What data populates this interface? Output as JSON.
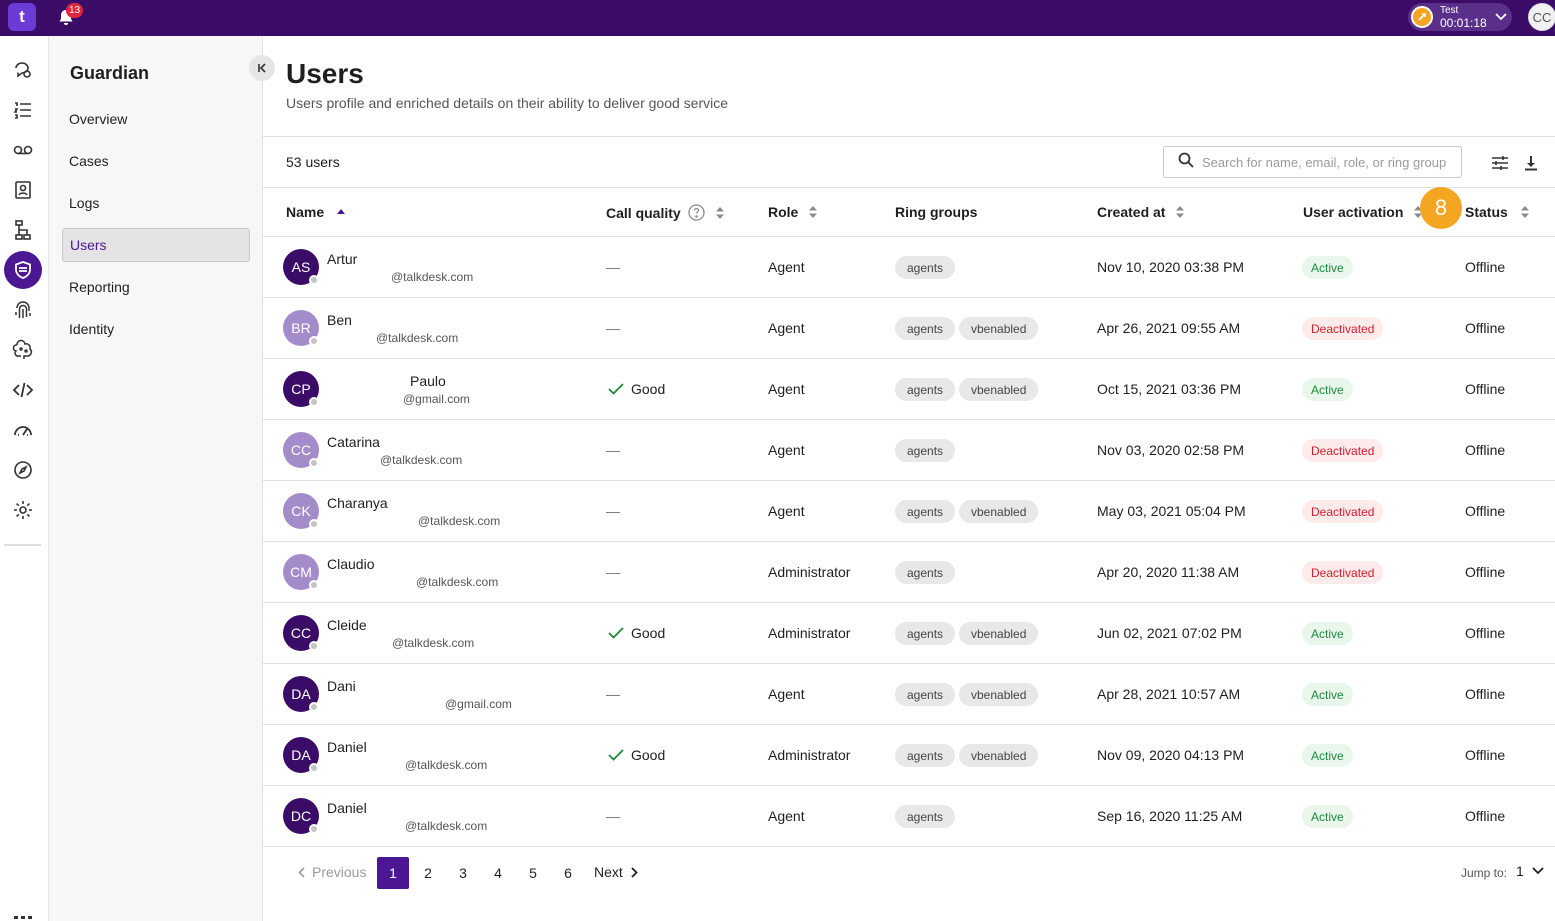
{
  "topbar": {
    "logo_text": "t",
    "notification_count": "13",
    "timer_label": "Test",
    "timer_time": "00:01:18",
    "user_initials": "CC"
  },
  "rail": {
    "icons": [
      "conversations-icon",
      "list-icon",
      "voicemail-icon",
      "contacts-icon",
      "flows-icon",
      "guardian-shield-icon",
      "fingerprint-icon",
      "brain-icon",
      "code-icon",
      "dashboard-icon",
      "compass-icon",
      "settings-icon"
    ],
    "active_icon": "guardian-shield-icon"
  },
  "sidebar": {
    "title": "Guardian",
    "items": [
      {
        "label": "Overview",
        "active": false
      },
      {
        "label": "Cases",
        "active": false
      },
      {
        "label": "Logs",
        "active": false
      },
      {
        "label": "Users",
        "active": true
      },
      {
        "label": "Reporting",
        "active": false
      },
      {
        "label": "Identity",
        "active": false
      }
    ]
  },
  "page": {
    "title": "Users",
    "subtitle": "Users profile and enriched details on their ability to deliver good service",
    "user_count": "53 users",
    "search_placeholder": "Search for name, email, role, or ring group"
  },
  "columns": {
    "name": "Name",
    "call_quality": "Call quality",
    "role": "Role",
    "ring_groups": "Ring groups",
    "created_at": "Created at",
    "user_activation": "User activation",
    "status": "Status"
  },
  "step_marker": "8",
  "rows": [
    {
      "initials": "AS",
      "avatar_color": "#3b0c67",
      "name": "Artur",
      "email": "@talkdesk.com",
      "call_quality": "—",
      "role": "Agent",
      "ring_groups": [
        "agents"
      ],
      "created_at": "Nov 10, 2020 03:38 PM",
      "activation": "Active",
      "status": "Offline"
    },
    {
      "initials": "BR",
      "avatar_color": "#a48bc9",
      "name": "Ben",
      "email": "@talkdesk.com",
      "call_quality": "—",
      "role": "Agent",
      "ring_groups": [
        "agents",
        "vbenabled"
      ],
      "created_at": "Apr 26, 2021 09:55 AM",
      "activation": "Deactivated",
      "status": "Offline"
    },
    {
      "initials": "CP",
      "avatar_color": "#3b0c67",
      "name": "Paulo",
      "email": "@gmail.com",
      "call_quality": "Good",
      "role": "Agent",
      "ring_groups": [
        "agents",
        "vbenabled"
      ],
      "created_at": "Oct 15, 2021 03:36 PM",
      "activation": "Active",
      "status": "Offline"
    },
    {
      "initials": "CC",
      "avatar_color": "#a48bc9",
      "name": "Catarina",
      "email": "@talkdesk.com",
      "call_quality": "—",
      "role": "Agent",
      "ring_groups": [
        "agents"
      ],
      "created_at": "Nov 03, 2020 02:58 PM",
      "activation": "Deactivated",
      "status": "Offline"
    },
    {
      "initials": "CK",
      "avatar_color": "#a48bc9",
      "name": "Charanya",
      "email": "@talkdesk.com",
      "call_quality": "—",
      "role": "Agent",
      "ring_groups": [
        "agents",
        "vbenabled"
      ],
      "created_at": "May 03, 2021 05:04 PM",
      "activation": "Deactivated",
      "status": "Offline"
    },
    {
      "initials": "CM",
      "avatar_color": "#a48bc9",
      "name": "Claudio",
      "email": "@talkdesk.com",
      "call_quality": "—",
      "role": "Administrator",
      "ring_groups": [
        "agents"
      ],
      "created_at": "Apr 20, 2020 11:38 AM",
      "activation": "Deactivated",
      "status": "Offline"
    },
    {
      "initials": "CC",
      "avatar_color": "#3b0c67",
      "name": "Cleide",
      "email": "@talkdesk.com",
      "call_quality": "Good",
      "role": "Administrator",
      "ring_groups": [
        "agents",
        "vbenabled"
      ],
      "created_at": "Jun 02, 2021 07:02 PM",
      "activation": "Active",
      "status": "Offline"
    },
    {
      "initials": "DA",
      "avatar_color": "#3b0c67",
      "name": "Dani",
      "email": "@gmail.com",
      "call_quality": "—",
      "role": "Agent",
      "ring_groups": [
        "agents",
        "vbenabled"
      ],
      "created_at": "Apr 28, 2021 10:57 AM",
      "activation": "Active",
      "status": "Offline"
    },
    {
      "initials": "DA",
      "avatar_color": "#3b0c67",
      "name": "Daniel",
      "email": "@talkdesk.com",
      "call_quality": "Good",
      "role": "Administrator",
      "ring_groups": [
        "agents",
        "vbenabled"
      ],
      "created_at": "Nov 09, 2020 04:13 PM",
      "activation": "Active",
      "status": "Offline"
    },
    {
      "initials": "DC",
      "avatar_color": "#3b0c67",
      "name": "Daniel",
      "email": "@talkdesk.com",
      "call_quality": "—",
      "role": "Agent",
      "ring_groups": [
        "agents"
      ],
      "created_at": "Sep 16, 2020 11:25 AM",
      "activation": "Active",
      "status": "Offline"
    }
  ],
  "pagination": {
    "previous_label": "Previous",
    "pages": [
      "1",
      "2",
      "3",
      "4",
      "5",
      "6"
    ],
    "current_page": "1",
    "next_label": "Next",
    "jump_label": "Jump to:",
    "jump_value": "1"
  },
  "colors": {
    "brand": "#3b0c67",
    "accent": "#4b1792",
    "marker": "#f4a623",
    "active_text": "#1d8a3c",
    "deactivated_text": "#d0202f"
  }
}
